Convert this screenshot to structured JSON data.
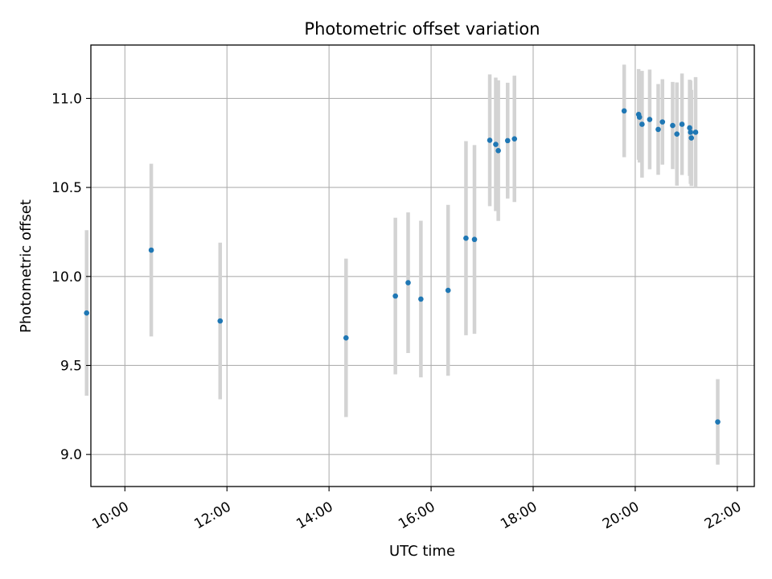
{
  "chart_data": {
    "type": "scatter",
    "title": "Photometric offset variation",
    "xlabel": "UTC time",
    "ylabel": "Photometric offset",
    "x_unit": "hours UTC",
    "xlim": [
      "09:20",
      "22:20"
    ],
    "ylim": [
      8.82,
      11.3
    ],
    "x_ticks": [
      "10:00",
      "12:00",
      "14:00",
      "16:00",
      "18:00",
      "20:00",
      "22:00"
    ],
    "y_ticks": [
      "9.0",
      "9.5",
      "10.0",
      "10.5",
      "11.0"
    ],
    "grid": true,
    "legend": "none",
    "series": [
      {
        "marker_color": "#1f77b4",
        "errorbar_color": "#d3d3d3",
        "points": [
          {
            "x": "09:15",
            "y": 9.795,
            "err": 0.465
          },
          {
            "x": "10:31",
            "y": 10.148,
            "err": 0.485
          },
          {
            "x": "11:52",
            "y": 9.75,
            "err": 0.44
          },
          {
            "x": "14:20",
            "y": 9.655,
            "err": 0.445
          },
          {
            "x": "15:18",
            "y": 9.89,
            "err": 0.44
          },
          {
            "x": "15:33",
            "y": 9.965,
            "err": 0.395
          },
          {
            "x": "15:48",
            "y": 9.873,
            "err": 0.44
          },
          {
            "x": "16:20",
            "y": 9.922,
            "err": 0.48
          },
          {
            "x": "16:41",
            "y": 10.215,
            "err": 0.545
          },
          {
            "x": "16:51",
            "y": 10.208,
            "err": 0.53
          },
          {
            "x": "17:09",
            "y": 10.765,
            "err": 0.37
          },
          {
            "x": "17:16",
            "y": 10.742,
            "err": 0.375
          },
          {
            "x": "17:19",
            "y": 10.707,
            "err": 0.395
          },
          {
            "x": "17:30",
            "y": 10.763,
            "err": 0.325
          },
          {
            "x": "17:38",
            "y": 10.773,
            "err": 0.355
          },
          {
            "x": "19:47",
            "y": 10.93,
            "err": 0.26
          },
          {
            "x": "20:04",
            "y": 10.91,
            "err": 0.255
          },
          {
            "x": "20:05",
            "y": 10.895,
            "err": 0.255
          },
          {
            "x": "20:08",
            "y": 10.855,
            "err": 0.3
          },
          {
            "x": "20:17",
            "y": 10.882,
            "err": 0.28
          },
          {
            "x": "20:27",
            "y": 10.826,
            "err": 0.255
          },
          {
            "x": "20:32",
            "y": 10.868,
            "err": 0.24
          },
          {
            "x": "20:44",
            "y": 10.848,
            "err": 0.245
          },
          {
            "x": "20:49",
            "y": 10.8,
            "err": 0.29
          },
          {
            "x": "20:55",
            "y": 10.855,
            "err": 0.285
          },
          {
            "x": "21:04",
            "y": 10.835,
            "err": 0.27
          },
          {
            "x": "21:05",
            "y": 10.81,
            "err": 0.29
          },
          {
            "x": "21:06",
            "y": 10.778,
            "err": 0.27
          },
          {
            "x": "21:11",
            "y": 10.81,
            "err": 0.31
          },
          {
            "x": "21:37",
            "y": 9.183,
            "err": 0.24
          }
        ]
      }
    ]
  }
}
